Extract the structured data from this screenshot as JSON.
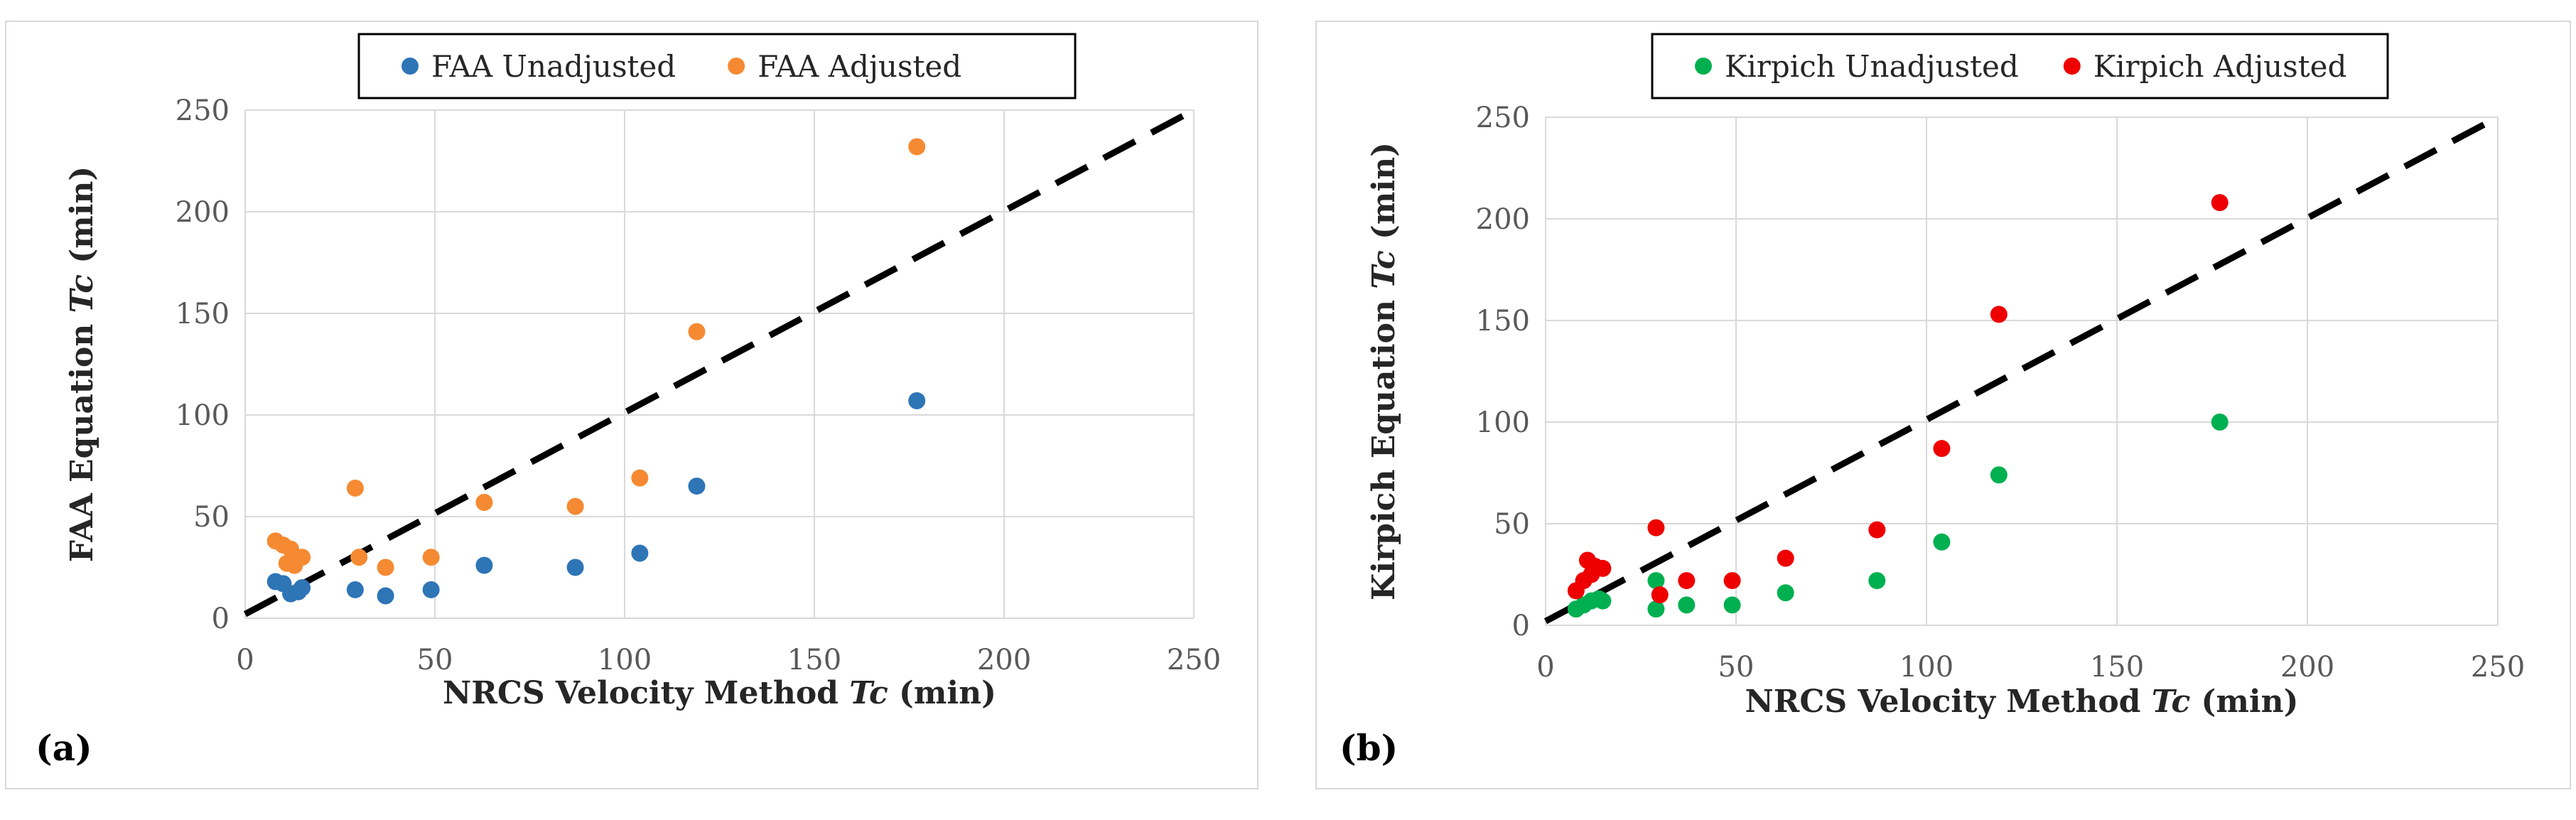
{
  "chart_data": [
    {
      "type": "scatter",
      "panel_label": "(a)",
      "xlabel_prefix": "NRCS Velocity Method ",
      "xlabel_italic": "Tc",
      "xlabel_suffix": " (min)",
      "ylabel_prefix": "FAA Equation ",
      "ylabel_italic": "Tc",
      "ylabel_suffix": " (min)",
      "xlim": [
        0,
        250
      ],
      "ylim": [
        0,
        250
      ],
      "xticks": [
        0,
        50,
        100,
        150,
        200,
        250
      ],
      "yticks": [
        0,
        50,
        100,
        150,
        200,
        250
      ],
      "grid": true,
      "legend_position": "top-center",
      "reference_line": {
        "style": "dashed",
        "color": "#000000",
        "from": [
          0,
          2
        ],
        "to": [
          250,
          250
        ]
      },
      "series": [
        {
          "name": "FAA Unadjusted",
          "color": "#2e75b6",
          "points": [
            [
              8,
              18
            ],
            [
              10,
              17
            ],
            [
              12,
              12
            ],
            [
              14,
              13
            ],
            [
              15,
              15
            ],
            [
              29,
              14
            ],
            [
              37,
              11
            ],
            [
              49,
              14
            ],
            [
              63,
              26
            ],
            [
              87,
              25
            ],
            [
              104,
              32
            ],
            [
              119,
              65
            ],
            [
              177,
              107
            ]
          ]
        },
        {
          "name": "FAA Adjusted",
          "color": "#f58a32",
          "points": [
            [
              8,
              38
            ],
            [
              10,
              36
            ],
            [
              12,
              34
            ],
            [
              11,
              27
            ],
            [
              13,
              26
            ],
            [
              15,
              30
            ],
            [
              29,
              64
            ],
            [
              30,
              30
            ],
            [
              37,
              25
            ],
            [
              49,
              30
            ],
            [
              63,
              57
            ],
            [
              87,
              55
            ],
            [
              104,
              69
            ],
            [
              119,
              141
            ],
            [
              177,
              232
            ]
          ]
        }
      ]
    },
    {
      "type": "scatter",
      "panel_label": "(b)",
      "xlabel_prefix": "NRCS Velocity Method ",
      "xlabel_italic": "Tc",
      "xlabel_suffix": " (min)",
      "ylabel_prefix": "Kirpich Equation ",
      "ylabel_italic": "Tc",
      "ylabel_suffix": " (min)",
      "xlim": [
        0,
        250
      ],
      "ylim": [
        0,
        250
      ],
      "xticks": [
        0,
        50,
        100,
        150,
        200,
        250
      ],
      "yticks": [
        0,
        50,
        100,
        150,
        200,
        250
      ],
      "grid": true,
      "legend_position": "top-center",
      "reference_line": {
        "style": "dashed",
        "color": "#000000",
        "from": [
          0,
          2
        ],
        "to": [
          250,
          250
        ]
      },
      "series": [
        {
          "name": "Kirpich Unadjusted",
          "color": "#00b050",
          "points": [
            [
              8,
              8
            ],
            [
              10,
              10
            ],
            [
              12,
              12
            ],
            [
              14,
              13
            ],
            [
              15,
              12
            ],
            [
              29,
              22
            ],
            [
              29,
              8
            ],
            [
              37,
              10
            ],
            [
              49,
              10
            ],
            [
              63,
              16
            ],
            [
              87,
              22
            ],
            [
              104,
              41
            ],
            [
              119,
              74
            ],
            [
              177,
              100
            ]
          ]
        },
        {
          "name": "Kirpich Adjusted",
          "color": "#ee0000",
          "points": [
            [
              8,
              17
            ],
            [
              10,
              22
            ],
            [
              11,
              32
            ],
            [
              12,
              25
            ],
            [
              13,
              29
            ],
            [
              15,
              28
            ],
            [
              29,
              48
            ],
            [
              30,
              15
            ],
            [
              37,
              22
            ],
            [
              49,
              22
            ],
            [
              63,
              33
            ],
            [
              87,
              47
            ],
            [
              104,
              87
            ],
            [
              119,
              153
            ],
            [
              177,
              208
            ]
          ]
        }
      ]
    }
  ]
}
